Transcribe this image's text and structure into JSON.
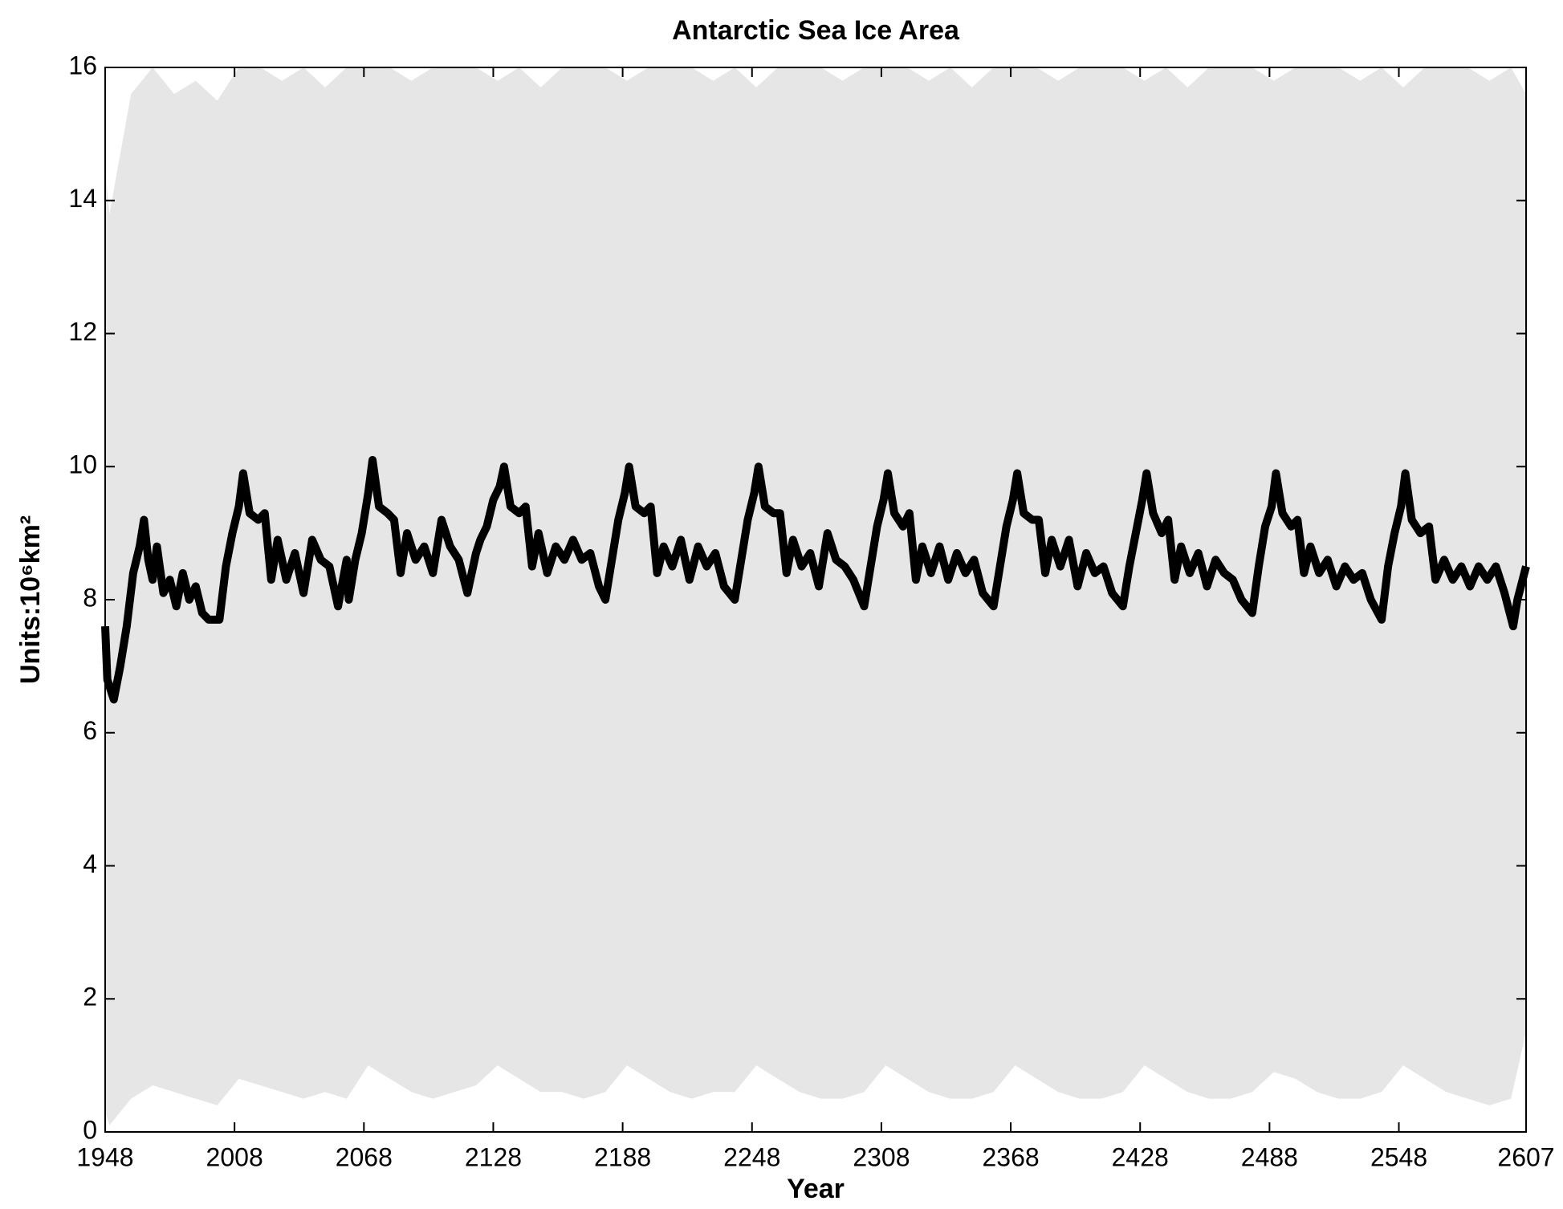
{
  "chart_data": {
    "type": "line",
    "title": "Antarctic Sea Ice Area",
    "xlabel": "Year",
    "ylabel": "Units:10⁶km²",
    "xlim": [
      1948,
      2607
    ],
    "xticks": [
      1948,
      2008,
      2068,
      2128,
      2188,
      2248,
      2308,
      2368,
      2428,
      2488,
      2548,
      2607
    ],
    "ylim": [
      0,
      16
    ],
    "yticks": [
      0,
      2,
      4,
      6,
      8,
      10,
      12,
      14,
      16
    ],
    "series": [
      {
        "style": "area",
        "color": "#e6e6e6",
        "x": [
          1948,
          1950,
          1960,
          1970,
          1980,
          1990,
          2000,
          2010,
          2020,
          2030,
          2040,
          2050,
          2060,
          2070,
          2080,
          2090,
          2100,
          2110,
          2120,
          2130,
          2140,
          2150,
          2160,
          2170,
          2180,
          2190,
          2200,
          2210,
          2220,
          2230,
          2240,
          2250,
          2260,
          2270,
          2280,
          2290,
          2300,
          2310,
          2320,
          2330,
          2340,
          2350,
          2360,
          2370,
          2380,
          2390,
          2400,
          2410,
          2420,
          2430,
          2440,
          2450,
          2460,
          2470,
          2480,
          2490,
          2500,
          2510,
          2520,
          2530,
          2540,
          2550,
          2560,
          2570,
          2580,
          2590,
          2600,
          2607
        ],
        "values": [
          14.5,
          13.8,
          15.6,
          16,
          15.6,
          15.8,
          15.5,
          16,
          16,
          15.8,
          16,
          15.7,
          16,
          16,
          16,
          15.8,
          16,
          16,
          16,
          15.8,
          16,
          15.7,
          16,
          16,
          16,
          15.8,
          16,
          16,
          16,
          15.8,
          16,
          15.7,
          16,
          16,
          16,
          15.8,
          16,
          16,
          16,
          15.8,
          16,
          15.7,
          16,
          16,
          16,
          15.8,
          16,
          16,
          16,
          15.8,
          16,
          15.7,
          16,
          16,
          16,
          15.8,
          16,
          16,
          16,
          15.8,
          16,
          15.7,
          16,
          16,
          16,
          15.8,
          16,
          15.6
        ]
      },
      {
        "style": "area",
        "color": "#ffffff",
        "x": [
          1948,
          1950,
          1960,
          1970,
          1980,
          1990,
          2000,
          2010,
          2020,
          2030,
          2040,
          2050,
          2060,
          2070,
          2080,
          2090,
          2100,
          2110,
          2120,
          2130,
          2140,
          2150,
          2160,
          2170,
          2180,
          2190,
          2200,
          2210,
          2220,
          2230,
          2240,
          2250,
          2260,
          2270,
          2280,
          2290,
          2300,
          2310,
          2320,
          2330,
          2340,
          2350,
          2360,
          2370,
          2380,
          2390,
          2400,
          2410,
          2420,
          2430,
          2440,
          2450,
          2460,
          2470,
          2480,
          2490,
          2500,
          2510,
          2520,
          2530,
          2540,
          2550,
          2560,
          2570,
          2580,
          2590,
          2600,
          2607
        ],
        "values": [
          0.3,
          0.1,
          0.5,
          0.7,
          0.6,
          0.5,
          0.4,
          0.8,
          0.7,
          0.6,
          0.5,
          0.6,
          0.5,
          1.0,
          0.8,
          0.6,
          0.5,
          0.6,
          0.7,
          1.0,
          0.8,
          0.6,
          0.6,
          0.5,
          0.6,
          1.0,
          0.8,
          0.6,
          0.5,
          0.6,
          0.6,
          1.0,
          0.8,
          0.6,
          0.5,
          0.5,
          0.6,
          1.0,
          0.8,
          0.6,
          0.5,
          0.5,
          0.6,
          1.0,
          0.8,
          0.6,
          0.5,
          0.5,
          0.6,
          1.0,
          0.8,
          0.6,
          0.5,
          0.5,
          0.6,
          0.9,
          0.8,
          0.6,
          0.5,
          0.5,
          0.6,
          1.0,
          0.8,
          0.6,
          0.5,
          0.4,
          0.5,
          1.5
        ]
      },
      {
        "style": "line",
        "color": "#000000",
        "x": [
          1948,
          1949,
          1952,
          1955,
          1958,
          1961,
          1964,
          1966,
          1968,
          1970,
          1972,
          1975,
          1978,
          1981,
          1984,
          1987,
          1990,
          1993,
          1996,
          2001,
          2004,
          2007,
          2010,
          2012,
          2015,
          2019,
          2022,
          2025,
          2028,
          2032,
          2036,
          2040,
          2044,
          2048,
          2052,
          2056,
          2060,
          2061,
          2064,
          2067,
          2070,
          2072,
          2075,
          2079,
          2082,
          2085,
          2088,
          2092,
          2096,
          2100,
          2104,
          2108,
          2112,
          2116,
          2120,
          2122,
          2125,
          2128,
          2131,
          2133,
          2136,
          2140,
          2143,
          2146,
          2149,
          2153,
          2157,
          2161,
          2165,
          2169,
          2173,
          2177,
          2180,
          2183,
          2186,
          2189,
          2191,
          2194,
          2198,
          2201,
          2204,
          2207,
          2211,
          2215,
          2219,
          2223,
          2227,
          2231,
          2235,
          2240,
          2243,
          2246,
          2249,
          2251,
          2254,
          2258,
          2261,
          2264,
          2267,
          2271,
          2275,
          2279,
          2283,
          2287,
          2291,
          2295,
          2300,
          2303,
          2306,
          2309,
          2311,
          2314,
          2318,
          2321,
          2324,
          2327,
          2331,
          2335,
          2339,
          2343,
          2347,
          2351,
          2355,
          2360,
          2363,
          2366,
          2369,
          2371,
          2374,
          2378,
          2381,
          2384,
          2387,
          2391,
          2395,
          2399,
          2403,
          2407,
          2411,
          2415,
          2420,
          2423,
          2426,
          2429,
          2431,
          2434,
          2438,
          2441,
          2444,
          2447,
          2451,
          2455,
          2459,
          2463,
          2467,
          2471,
          2475,
          2480,
          2483,
          2486,
          2489,
          2491,
          2494,
          2498,
          2501,
          2504,
          2507,
          2511,
          2515,
          2519,
          2523,
          2527,
          2531,
          2535,
          2540,
          2543,
          2546,
          2549,
          2551,
          2554,
          2558,
          2562,
          2565,
          2569,
          2573,
          2577,
          2581,
          2585,
          2589,
          2593,
          2597,
          2601,
          2603,
          2607
        ],
        "values": [
          7.6,
          6.8,
          6.5,
          7.0,
          7.6,
          8.4,
          8.8,
          9.2,
          8.6,
          8.3,
          8.8,
          8.1,
          8.3,
          7.9,
          8.4,
          8.0,
          8.2,
          7.8,
          7.7,
          7.7,
          8.5,
          9.0,
          9.4,
          9.9,
          9.3,
          9.2,
          9.3,
          8.3,
          8.9,
          8.3,
          8.7,
          8.1,
          8.9,
          8.6,
          8.5,
          7.9,
          8.6,
          8.0,
          8.6,
          9.0,
          9.6,
          10.1,
          9.4,
          9.3,
          9.2,
          8.4,
          9.0,
          8.6,
          8.8,
          8.4,
          9.2,
          8.8,
          8.6,
          8.1,
          8.7,
          8.9,
          9.1,
          9.5,
          9.7,
          10.0,
          9.4,
          9.3,
          9.4,
          8.5,
          9.0,
          8.4,
          8.8,
          8.6,
          8.9,
          8.6,
          8.7,
          8.2,
          8.0,
          8.6,
          9.2,
          9.6,
          10.0,
          9.4,
          9.3,
          9.4,
          8.4,
          8.8,
          8.5,
          8.9,
          8.3,
          8.8,
          8.5,
          8.7,
          8.2,
          8.0,
          8.6,
          9.2,
          9.6,
          10.0,
          9.4,
          9.3,
          9.3,
          8.4,
          8.9,
          8.5,
          8.7,
          8.2,
          9.0,
          8.6,
          8.5,
          8.3,
          7.9,
          8.5,
          9.1,
          9.5,
          9.9,
          9.3,
          9.1,
          9.3,
          8.3,
          8.8,
          8.4,
          8.8,
          8.3,
          8.7,
          8.4,
          8.6,
          8.1,
          7.9,
          8.5,
          9.1,
          9.5,
          9.9,
          9.3,
          9.2,
          9.2,
          8.4,
          8.9,
          8.5,
          8.9,
          8.2,
          8.7,
          8.4,
          8.5,
          8.1,
          7.9,
          8.5,
          9.0,
          9.5,
          9.9,
          9.3,
          9.0,
          9.2,
          8.3,
          8.8,
          8.4,
          8.7,
          8.2,
          8.6,
          8.4,
          8.3,
          8.0,
          7.8,
          8.5,
          9.1,
          9.4,
          9.9,
          9.3,
          9.1,
          9.2,
          8.4,
          8.8,
          8.4,
          8.6,
          8.2,
          8.5,
          8.3,
          8.4,
          8.0,
          7.7,
          8.5,
          9.0,
          9.4,
          9.9,
          9.2,
          9.0,
          9.1,
          8.3,
          8.6,
          8.3,
          8.5,
          8.2,
          8.5,
          8.3,
          8.5,
          8.1,
          7.6,
          8.0,
          8.5
        ]
      }
    ]
  }
}
